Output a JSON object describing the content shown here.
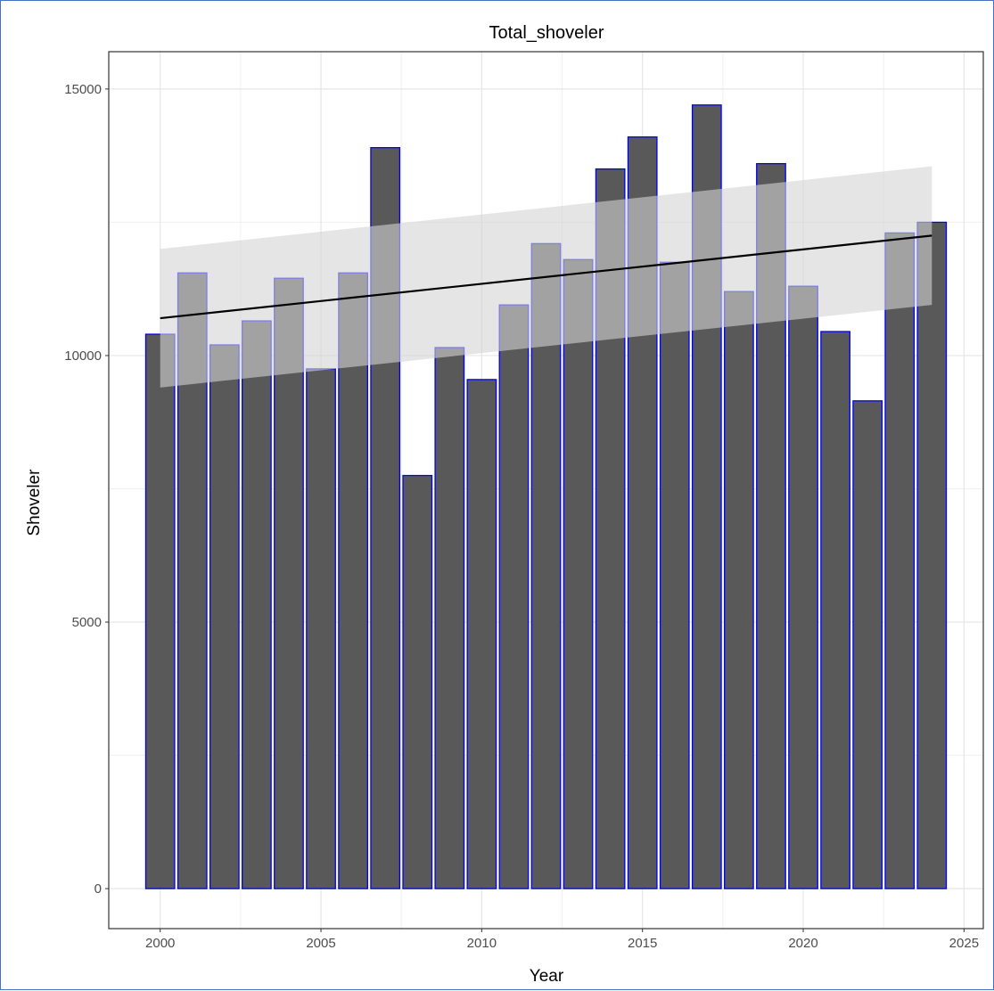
{
  "chart_data": {
    "type": "bar",
    "title": "Total_shoveler",
    "xlabel": "Year",
    "ylabel": "Shoveler",
    "x": [
      2000,
      2001,
      2002,
      2003,
      2004,
      2005,
      2006,
      2007,
      2008,
      2009,
      2010,
      2011,
      2012,
      2013,
      2014,
      2015,
      2016,
      2017,
      2018,
      2019,
      2020,
      2021,
      2022,
      2023,
      2024
    ],
    "values": [
      10400,
      11550,
      10200,
      10650,
      11450,
      9750,
      11550,
      13900,
      7750,
      10150,
      9550,
      10950,
      12100,
      11800,
      13500,
      14100,
      11750,
      14700,
      11200,
      13600,
      11300,
      10450,
      9150,
      12300,
      12500
    ],
    "xlim": [
      1998.4,
      2025.6
    ],
    "ylim": [
      -750,
      15700
    ],
    "x_ticks": [
      2000,
      2005,
      2010,
      2015,
      2020,
      2025
    ],
    "y_ticks": [
      0,
      5000,
      10000,
      15000
    ],
    "grid": true,
    "bar_fill": "#595959",
    "bar_outline": "#0000ff",
    "trend": {
      "type": "linear",
      "x": [
        2000,
        2024
      ],
      "y": [
        10700,
        12250
      ],
      "line_color": "#000000",
      "band_color": "#d3d3d3",
      "band_lower": [
        9400,
        10950
      ],
      "band_upper": [
        12000,
        13550
      ]
    }
  }
}
